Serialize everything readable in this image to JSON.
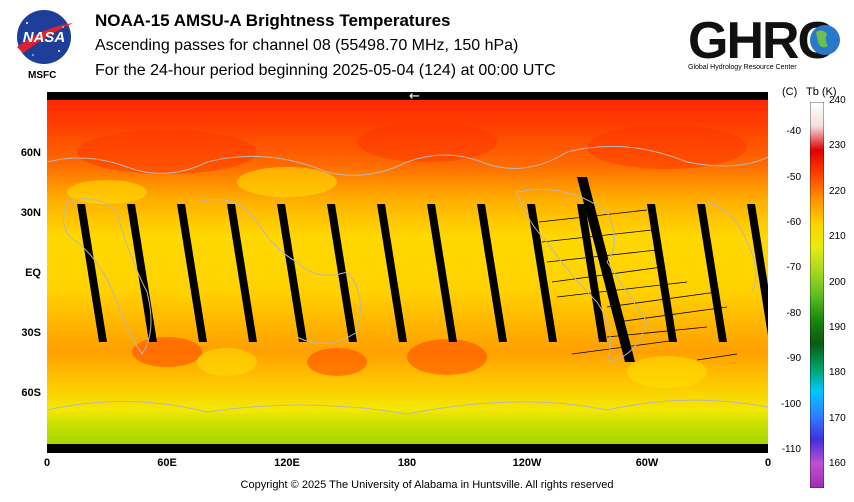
{
  "header": {
    "title": "NOAA-15 AMSU-A Brightness Temperatures",
    "subtitle": "Ascending passes for channel 08 (55498.70 MHz, 150 hPa)",
    "period": "For the 24-hour period beginning 2025-05-04 (124) at 00:00 UTC"
  },
  "logos": {
    "nasa": {
      "wordmark": "NASA",
      "caption": "MSFC"
    },
    "ghrc": {
      "wordmark": "GHRC",
      "caption": "Global Hydrology Resource Center"
    }
  },
  "map": {
    "lat_labels": [
      "60N",
      "30N",
      "EQ",
      "30S",
      "60S"
    ],
    "lon_labels": [
      "0",
      "60E",
      "120E",
      "180",
      "120W",
      "60W",
      "0"
    ],
    "orbit_arrow": "←"
  },
  "colorbar": {
    "c_unit": "(C)",
    "k_unit": "Tb  (K)",
    "c_ticks": [
      "-40",
      "-50",
      "-60",
      "-70",
      "-80",
      "-90",
      "-100",
      "-110"
    ],
    "k_ticks": [
      "240",
      "230",
      "220",
      "210",
      "200",
      "190",
      "180",
      "170",
      "160"
    ],
    "k_range": [
      155,
      240
    ],
    "colors": [
      "#9b2fb0",
      "#c04fd0",
      "#4030e0",
      "#3080ff",
      "#00c8ff",
      "#00a060",
      "#0a5a10",
      "#1a8a10",
      "#60c020",
      "#a8d820",
      "#e6ec10",
      "#ffd000",
      "#ff9000",
      "#ff4000",
      "#e00000",
      "#f3dfe0",
      "#ffffff"
    ]
  },
  "footer": {
    "copyright": "Copyright © 2025 The University of Alabama in Huntsville.  All rights reserved"
  }
}
